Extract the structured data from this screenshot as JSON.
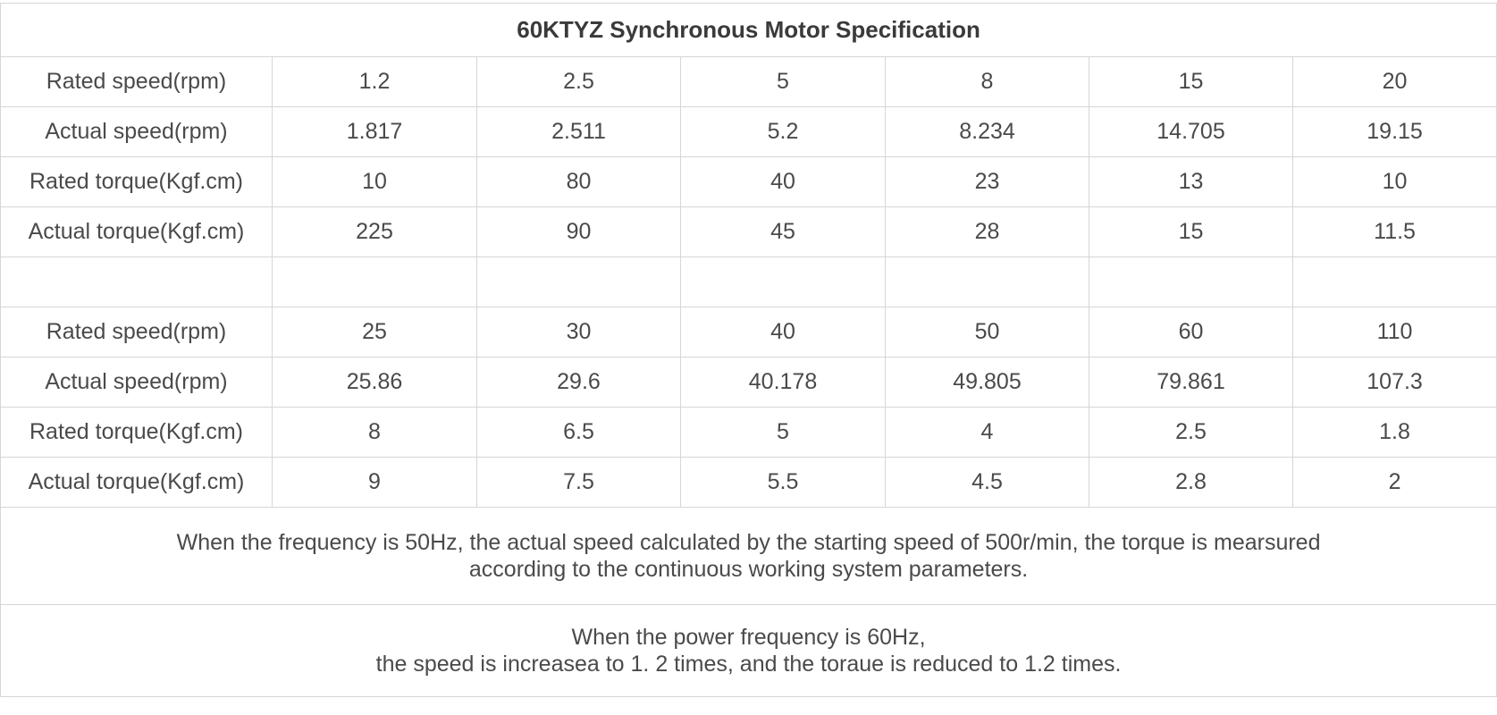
{
  "title": "60KTYZ Synchronous Motor Specification",
  "blocks": [
    {
      "rows": [
        [
          "Rated speed(rpm)",
          "1.2",
          "2.5",
          "5",
          "8",
          "15",
          "20"
        ],
        [
          "Actual speed(rpm)",
          "1.817",
          "2.511",
          "5.2",
          "8.234",
          "14.705",
          "19.15"
        ],
        [
          "Rated torque(Kgf.cm)",
          "10",
          "80",
          "40",
          "23",
          "13",
          "10"
        ],
        [
          "Actual torque(Kgf.cm)",
          "225",
          "90",
          "45",
          "28",
          "15",
          "11.5"
        ]
      ]
    },
    {
      "rows": [
        [
          "Rated speed(rpm)",
          "25",
          "30",
          "40",
          "50",
          "60",
          "110"
        ],
        [
          "Actual speed(rpm)",
          "25.86",
          "29.6",
          "40.178",
          "49.805",
          "79.861",
          "107.3"
        ],
        [
          "Rated torque(Kgf.cm)",
          "8",
          "6.5",
          "5",
          "4",
          "2.5",
          "1.8"
        ],
        [
          "Actual torque(Kgf.cm)",
          "9",
          "7.5",
          "5.5",
          "4.5",
          "2.8",
          "2"
        ]
      ]
    }
  ],
  "notes": [
    [
      "When the frequency is 50Hz, the actual speed calculated by the starting speed of 500r/min, the torque is mearsured",
      "according to the continuous working system parameters."
    ],
    [
      "When the power frequency is 60Hz,",
      "the speed is increasea to 1. 2 times, and the toraue is reduced to 1.2 times."
    ]
  ]
}
